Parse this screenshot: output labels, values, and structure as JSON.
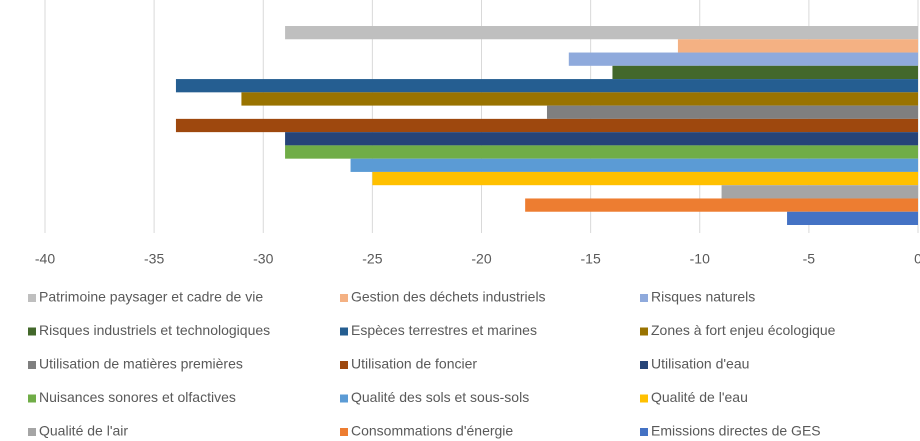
{
  "chart_data": {
    "type": "bar",
    "orientation": "horizontal",
    "series": [
      {
        "name": "Patrimoine paysager et cadre de vie",
        "color": "#bfbfbf",
        "values": [
          -29
        ]
      },
      {
        "name": "Gestion des déchets industriels",
        "color": "#f4b183",
        "values": [
          -11
        ]
      },
      {
        "name": "Risques naturels",
        "color": "#8faadc",
        "values": [
          -16
        ]
      },
      {
        "name": "Risques industriels et technologiques",
        "color": "#43682b",
        "values": [
          -14
        ]
      },
      {
        "name": "Espèces terrestres et marines",
        "color": "#255e91",
        "values": [
          -34
        ]
      },
      {
        "name": "Zones à fort enjeu écologique",
        "color": "#997300",
        "values": [
          -31
        ]
      },
      {
        "name": "Utilisation de matières premières",
        "color": "#7f7f7f",
        "values": [
          -17
        ]
      },
      {
        "name": "Utilisation de foncier",
        "color": "#9e480e",
        "values": [
          -34
        ]
      },
      {
        "name": "Utilisation d'eau",
        "color": "#264478",
        "values": [
          -29
        ]
      },
      {
        "name": "Nuisances sonores et olfactives",
        "color": "#70ad47",
        "values": [
          -29
        ]
      },
      {
        "name": "Qualité des sols et sous-sols",
        "color": "#5b9bd5",
        "values": [
          -26
        ]
      },
      {
        "name": "Qualité de l'eau",
        "color": "#ffc000",
        "values": [
          -25
        ]
      },
      {
        "name": "Qualité de l'air",
        "color": "#a5a5a5",
        "values": [
          -9
        ]
      },
      {
        "name": "Consommations d'énergie",
        "color": "#ed7d31",
        "values": [
          -18
        ]
      },
      {
        "name": "Emissions directes de GES",
        "color": "#4472c4",
        "values": [
          -6
        ]
      }
    ],
    "xlim": [
      -40,
      0
    ],
    "xticks": [
      -40,
      -35,
      -30,
      -25,
      -20,
      -15,
      -10,
      -5,
      0
    ],
    "grid": true,
    "legend": "bottom"
  }
}
